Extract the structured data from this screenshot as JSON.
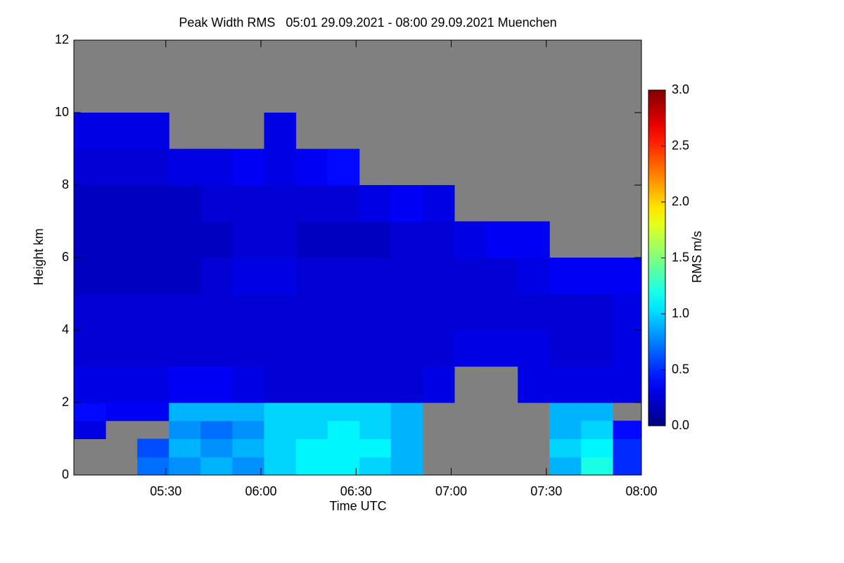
{
  "chart_data": {
    "type": "heatmap",
    "title": "Peak Width RMS   05:01 29.09.2021 - 08:00 29.09.2021 Muenchen",
    "xlabel": "Time UTC",
    "ylabel": "Height km",
    "colorbar_label": "RMS m/s",
    "xlim": [
      "05:01",
      "08:00"
    ],
    "xticks": [
      "05:30",
      "06:00",
      "06:30",
      "07:00",
      "07:30",
      "08:00"
    ],
    "ylim": [
      0,
      12
    ],
    "yticks": [
      0,
      2,
      4,
      6,
      8,
      10,
      12
    ],
    "zlim": [
      0,
      3
    ],
    "zticks": [
      {
        "value": 0,
        "label": "0.0"
      },
      {
        "value": 0.5,
        "label": "0.5"
      },
      {
        "value": 1,
        "label": "1.0"
      },
      {
        "value": 1.5,
        "label": "1.5"
      },
      {
        "value": 2,
        "label": "2.0"
      },
      {
        "value": 2.5,
        "label": "2.5"
      },
      {
        "value": 3,
        "label": "3.0"
      }
    ],
    "colormap": "jet",
    "missing_color": "#808080",
    "x_edges": [
      "05:01",
      "05:11",
      "05:21",
      "05:31",
      "05:41",
      "05:51",
      "06:01",
      "06:11",
      "06:21",
      "06:31",
      "06:41",
      "06:51",
      "07:01",
      "07:11",
      "07:21",
      "07:31",
      "07:41",
      "07:51",
      "08:00"
    ],
    "y_edges": [
      0,
      0.5,
      1,
      1.5,
      2,
      3,
      4,
      5,
      6,
      7,
      8,
      9,
      10
    ],
    "values": [
      [
        null,
        null,
        0.3,
        0.4,
        0.3,
        0.25,
        0.25,
        0.2,
        0.2,
        0.2,
        0.25,
        0.3
      ],
      [
        null,
        null,
        null,
        0.35,
        0.3,
        0.25,
        0.25,
        0.2,
        0.2,
        0.2,
        0.25,
        0.3
      ],
      [
        0.7,
        0.6,
        null,
        0.35,
        0.3,
        0.25,
        0.25,
        0.2,
        0.2,
        0.2,
        0.25,
        0.3
      ],
      [
        0.8,
        0.9,
        0.8,
        0.9,
        0.35,
        0.25,
        0.25,
        0.2,
        0.2,
        0.2,
        0.3,
        null
      ],
      [
        0.9,
        0.8,
        0.7,
        0.9,
        0.35,
        0.25,
        0.25,
        0.25,
        0.2,
        0.25,
        0.3,
        null
      ],
      [
        0.8,
        0.9,
        0.8,
        0.9,
        0.3,
        0.25,
        0.25,
        0.3,
        0.25,
        0.25,
        0.35,
        null
      ],
      [
        1.0,
        1.0,
        1.0,
        1.0,
        0.25,
        0.25,
        0.25,
        0.3,
        0.25,
        0.25,
        0.3,
        0.3
      ],
      [
        1.1,
        1.1,
        1.0,
        1.0,
        0.25,
        0.25,
        0.25,
        0.25,
        0.2,
        0.25,
        0.35,
        null
      ],
      [
        1.1,
        1.1,
        1.1,
        1.0,
        0.25,
        0.25,
        0.25,
        0.25,
        0.2,
        0.25,
        0.4,
        null
      ],
      [
        1.0,
        1.1,
        1.0,
        1.0,
        0.25,
        0.25,
        0.25,
        0.25,
        0.2,
        0.3,
        null,
        null
      ],
      [
        0.9,
        0.9,
        0.9,
        0.9,
        0.25,
        0.25,
        0.25,
        0.25,
        0.25,
        0.35,
        null,
        null
      ],
      [
        null,
        null,
        null,
        null,
        0.3,
        0.25,
        0.25,
        0.25,
        0.25,
        0.3,
        null,
        null
      ],
      [
        null,
        null,
        null,
        null,
        null,
        0.3,
        0.25,
        0.25,
        0.3,
        null,
        null,
        null
      ],
      [
        null,
        null,
        null,
        null,
        null,
        0.3,
        0.25,
        0.25,
        0.35,
        null,
        null,
        null
      ],
      [
        null,
        null,
        null,
        null,
        0.3,
        0.3,
        0.25,
        0.3,
        0.35,
        null,
        null,
        null
      ],
      [
        0.9,
        1.0,
        0.9,
        0.9,
        0.3,
        0.25,
        0.25,
        0.35,
        null,
        null,
        null,
        null
      ],
      [
        1.2,
        1.1,
        1.0,
        0.9,
        0.3,
        0.25,
        0.25,
        0.35,
        null,
        null,
        null,
        null
      ],
      [
        0.5,
        0.5,
        0.4,
        null,
        0.3,
        0.3,
        0.3,
        0.35,
        null,
        null,
        null,
        null
      ]
    ]
  }
}
